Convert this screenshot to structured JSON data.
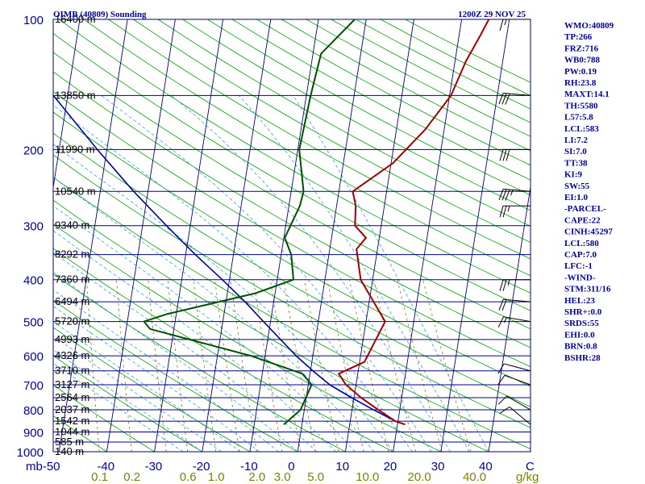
{
  "header": {
    "station": "OIMB (40809) Sounding",
    "datetime": "1200Z 29 NOV 25"
  },
  "indices": [
    "WMO:40809",
    "TP:266",
    "FRZ:716",
    "WB0:788",
    "PW:0.19",
    "RH:23.8",
    "MAXT:14.1",
    "TH:5580",
    "L57:5.8",
    "LCL:583",
    "LI:7.2",
    "SI:7.0",
    "TT:38",
    "KI:9",
    "SW:55",
    "EI:1.0",
    "-PARCEL-",
    "CAPE:22",
    "CINH:45297",
    "LCL:580",
    "CAP:7.0",
    "LFC:-1",
    "-WIND-",
    "STM:311/16",
    "HEL:23",
    "SHR+:0.0",
    "SRDS:55",
    "EHI:0.0",
    "BRN:0.8",
    "BSHR:28"
  ],
  "colors": {
    "isobar": "#000080",
    "isotherm": "#000080",
    "dry_adiabat": "#00a000",
    "moist_adiabat": "#30a0ff",
    "mixing_ratio": "#808000",
    "temperature": "#a00000",
    "dewpoint": "#005000",
    "parcel": "#0000a0",
    "wind": "#000000"
  },
  "chart_data": {
    "type": "skew-t log-p sounding",
    "title": "OIMB (40809) Sounding 1200Z 29 NOV 25",
    "pressure_axis": {
      "unit": "mb",
      "range": [
        1000,
        100
      ],
      "labels": [
        "100",
        "200",
        "300",
        "400",
        "500",
        "600",
        "700",
        "800",
        "900",
        "1000"
      ],
      "label_values": [
        100,
        200,
        300,
        400,
        500,
        600,
        700,
        800,
        900,
        1000
      ]
    },
    "temperature_axis": {
      "unit": "C",
      "values": [
        -50,
        -40,
        -30,
        -20,
        -10,
        0,
        10,
        20,
        30,
        40
      ],
      "labels": [
        "mb-50",
        "-40",
        "-30",
        "-20",
        "-10",
        "0",
        "10",
        "20",
        "30",
        "40",
        "C"
      ]
    },
    "mixing_ratio_axis": {
      "unit": "g/kg",
      "values": [
        0.1,
        0.2,
        0.6,
        1.0,
        2.0,
        3.0,
        5.0,
        10.0,
        20.0,
        40.0
      ],
      "labels": [
        "0.1",
        "0.2",
        "0.6",
        "1.0",
        "2.0",
        "3.0",
        "5.0",
        "10.0",
        "20.0",
        "40.0",
        "g/kg"
      ]
    },
    "height_levels": [
      {
        "p": 100,
        "label": "16400 m"
      },
      {
        "p": 150,
        "label": "13850 m"
      },
      {
        "p": 200,
        "label": "11990 m"
      },
      {
        "p": 250,
        "label": "10540 m"
      },
      {
        "p": 300,
        "label": "9340 m"
      },
      {
        "p": 350,
        "label": "8292 m"
      },
      {
        "p": 400,
        "label": "7360 m"
      },
      {
        "p": 450,
        "label": "6494 m"
      },
      {
        "p": 500,
        "label": "5720 m"
      },
      {
        "p": 550,
        "label": "4993 m"
      },
      {
        "p": 600,
        "label": "4326 m"
      },
      {
        "p": 650,
        "label": "3710 m"
      },
      {
        "p": 700,
        "label": "3127 m"
      },
      {
        "p": 750,
        "label": "2564 m"
      },
      {
        "p": 800,
        "label": "2037 m"
      },
      {
        "p": 850,
        "label": "1542 m"
      },
      {
        "p": 900,
        "label": "1044 m"
      },
      {
        "p": 950,
        "label": "585 m"
      },
      {
        "p": 1000,
        "label": "140 m"
      }
    ],
    "temperature_profile": [
      {
        "p": 865,
        "t": 21.6
      },
      {
        "p": 850,
        "t": 19.5
      },
      {
        "p": 800,
        "t": 15.5
      },
      {
        "p": 750,
        "t": 11.5
      },
      {
        "p": 700,
        "t": 7.9
      },
      {
        "p": 660,
        "t": 6.0
      },
      {
        "p": 620,
        "t": 11.0
      },
      {
        "p": 500,
        "t": 14.0
      },
      {
        "p": 400,
        "t": 7.5
      },
      {
        "p": 340,
        "t": 5.6
      },
      {
        "p": 320,
        "t": 7.2
      },
      {
        "p": 300,
        "t": 4.5
      },
      {
        "p": 270,
        "t": 4.0
      },
      {
        "p": 250,
        "t": 2.9
      },
      {
        "p": 215,
        "t": 10.4
      },
      {
        "p": 180,
        "t": 16.0
      },
      {
        "p": 150,
        "t": 20.3
      },
      {
        "p": 125,
        "t": 22.3
      },
      {
        "p": 110,
        "t": 24.3
      },
      {
        "p": 100,
        "t": 25.7
      }
    ],
    "dewpoint_profile": [
      {
        "p": 865,
        "t": -3.8
      },
      {
        "p": 800,
        "t": -0.8
      },
      {
        "p": 700,
        "t": 0.7
      },
      {
        "p": 660,
        "t": -1.6
      },
      {
        "p": 600,
        "t": -13.0
      },
      {
        "p": 520,
        "t": -35.0
      },
      {
        "p": 500,
        "t": -36.5
      },
      {
        "p": 480,
        "t": -31.8
      },
      {
        "p": 430,
        "t": -14.1
      },
      {
        "p": 400,
        "t": -6.6
      },
      {
        "p": 350,
        "t": -7.9
      },
      {
        "p": 320,
        "t": -9.8
      },
      {
        "p": 270,
        "t": -7.7
      },
      {
        "p": 250,
        "t": -7.4
      },
      {
        "p": 200,
        "t": -9.7
      },
      {
        "p": 150,
        "t": -9.1
      },
      {
        "p": 120,
        "t": -8.3
      },
      {
        "p": 100,
        "t": -2.4
      }
    ],
    "parcel_profile": [
      {
        "p": 865,
        "t": 21.6
      },
      {
        "p": 850,
        "t": 19.5
      },
      {
        "p": 800,
        "t": 14.5
      },
      {
        "p": 750,
        "t": 9.5
      },
      {
        "p": 700,
        "t": 4.5
      },
      {
        "p": 650,
        "t": 0.5
      },
      {
        "p": 600,
        "t": -3.5
      },
      {
        "p": 500,
        "t": -11.5
      },
      {
        "p": 450,
        "t": -16.0
      },
      {
        "p": 400,
        "t": -21.5
      },
      {
        "p": 350,
        "t": -28.0
      },
      {
        "p": 300,
        "t": -35.0
      },
      {
        "p": 250,
        "t": -43.0
      },
      {
        "p": 200,
        "t": -52.0
      },
      {
        "p": 150,
        "t": -63.0
      },
      {
        "p": 100,
        "t": -77.0
      }
    ],
    "winds": [
      {
        "p": 100,
        "dir": 270,
        "spd": 15
      },
      {
        "p": 150,
        "dir": 275,
        "spd": 30
      },
      {
        "p": 200,
        "dir": 270,
        "spd": 30
      },
      {
        "p": 250,
        "dir": 275,
        "spd": 35
      },
      {
        "p": 270,
        "dir": 270,
        "spd": 25
      },
      {
        "p": 400,
        "dir": 270,
        "spd": 25
      },
      {
        "p": 450,
        "dir": 275,
        "spd": 20
      },
      {
        "p": 500,
        "dir": 280,
        "spd": 15
      },
      {
        "p": 650,
        "dir": 285,
        "spd": 10
      },
      {
        "p": 700,
        "dir": 290,
        "spd": 10
      },
      {
        "p": 800,
        "dir": 300,
        "spd": 10
      },
      {
        "p": 865,
        "dir": 310,
        "spd": 10
      }
    ]
  }
}
